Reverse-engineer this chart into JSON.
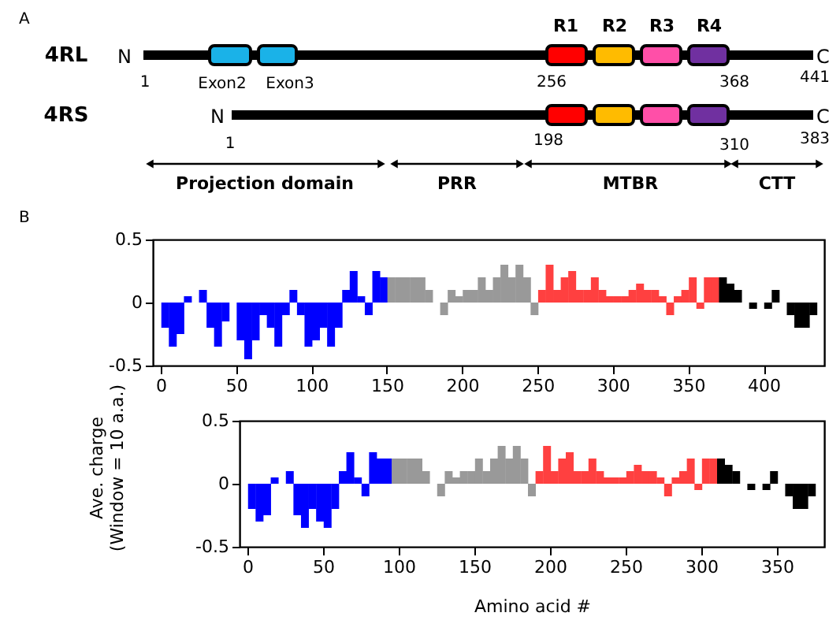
{
  "chart_data": [
    {
      "type": "other",
      "annotations": [
        "A",
        "4RL",
        "N",
        "C",
        "Exon2",
        "Exon3",
        "R1",
        "R2",
        "R3",
        "R4",
        "1",
        "256",
        "368",
        "441",
        "4RS",
        "N",
        "C",
        "1",
        "198",
        "310",
        "383",
        "Projection domain",
        "PRR",
        "MTBR",
        "CTT",
        "B"
      ],
      "colors": [
        "#1ab2e8",
        "#1ab2e8",
        "#ff0000",
        "#ffbb00",
        "#ff4fa8",
        "#7030a0"
      ]
    },
    {
      "type": "bar",
      "xlim": [
        0,
        435
      ],
      "xticks": [
        0,
        50,
        100,
        150,
        200,
        250,
        300,
        350,
        400
      ],
      "ylim": [
        -0.5,
        0.5
      ],
      "yticks": [
        -0.5,
        0,
        0.5
      ],
      "grid": false,
      "legend": false,
      "series": [
        {
          "color": "#0000ff",
          "x": [
            3,
            8,
            13,
            18,
            23,
            28,
            33,
            38,
            43,
            48,
            53,
            58,
            63,
            68,
            73,
            78,
            83,
            88,
            93,
            98,
            103,
            108,
            113,
            118,
            123,
            128,
            133,
            138,
            143,
            148
          ],
          "values": [
            -0.2,
            -0.35,
            -0.25,
            0.05,
            0,
            0.1,
            -0.2,
            -0.35,
            -0.15,
            0,
            -0.3,
            -0.45,
            -0.3,
            -0.1,
            -0.2,
            -0.35,
            -0.1,
            0.1,
            -0.1,
            -0.35,
            -0.3,
            -0.2,
            -0.35,
            -0.2,
            0.1,
            0.25,
            0.05,
            -0.1,
            0.25,
            0.2
          ]
        },
        {
          "color": "#999999",
          "x": [
            153,
            158,
            163,
            168,
            173,
            178,
            183,
            188,
            193,
            198,
            203,
            208,
            213,
            218,
            223,
            228,
            233,
            238,
            243,
            248
          ],
          "values": [
            0.2,
            0.2,
            0.2,
            0.2,
            0.2,
            0.1,
            0,
            -0.1,
            0.1,
            0.05,
            0.1,
            0.1,
            0.2,
            0.1,
            0.2,
            0.3,
            0.2,
            0.3,
            0.2,
            -0.1
          ]
        },
        {
          "color": "#ff4040",
          "x": [
            253,
            258,
            263,
            268,
            273,
            278,
            283,
            288,
            293,
            298,
            303,
            308,
            313,
            318,
            323,
            328,
            333,
            338,
            343,
            348,
            353,
            358,
            363,
            368
          ],
          "values": [
            0.1,
            0.3,
            0.1,
            0.2,
            0.25,
            0.1,
            0.1,
            0.2,
            0.1,
            0.05,
            0.05,
            0.05,
            0.1,
            0.15,
            0.1,
            0.1,
            0.05,
            -0.1,
            0.05,
            0.1,
            0.2,
            -0.05,
            0.2,
            0.2
          ]
        },
        {
          "color": "#000000",
          "x": [
            373,
            378,
            383,
            388,
            393,
            398,
            403,
            408,
            413,
            418,
            423,
            428,
            433
          ],
          "values": [
            0.2,
            0.15,
            0.1,
            0,
            -0.05,
            0,
            -0.05,
            0.1,
            0,
            -0.1,
            -0.2,
            -0.2,
            -0.1
          ]
        }
      ]
    },
    {
      "type": "bar",
      "xlabel": "Amino acid #",
      "ylabel": "Ave. charge\n(Window = 10 a.a.)",
      "xlim": [
        0,
        376
      ],
      "xticks": [
        0,
        50,
        100,
        150,
        200,
        250,
        300,
        350
      ],
      "ylim": [
        -0.5,
        0.5
      ],
      "yticks": [
        -0.5,
        0,
        0.5
      ],
      "grid": false,
      "legend": false,
      "series": [
        {
          "color": "#0000ff",
          "x": [
            3,
            8,
            13,
            18,
            23,
            28,
            33,
            38,
            43,
            48,
            53,
            58,
            63,
            68,
            73,
            78,
            83,
            88,
            93
          ],
          "values": [
            -0.2,
            -0.3,
            -0.25,
            0.05,
            0,
            0.1,
            -0.25,
            -0.35,
            -0.2,
            -0.3,
            -0.35,
            -0.2,
            0.1,
            0.25,
            0.05,
            -0.1,
            0.25,
            0.2,
            0.2
          ]
        },
        {
          "color": "#999999",
          "x": [
            98,
            103,
            108,
            113,
            118,
            123,
            128,
            133,
            138,
            143,
            148,
            153,
            158,
            163,
            168,
            173,
            178,
            183,
            188
          ],
          "values": [
            0.2,
            0.2,
            0.2,
            0.2,
            0.1,
            0,
            -0.1,
            0.1,
            0.05,
            0.1,
            0.1,
            0.2,
            0.1,
            0.2,
            0.3,
            0.2,
            0.3,
            0.2,
            -0.1
          ]
        },
        {
          "color": "#ff4040",
          "x": [
            193,
            198,
            203,
            208,
            213,
            218,
            223,
            228,
            233,
            238,
            243,
            248,
            253,
            258,
            263,
            268,
            273,
            278,
            283,
            288,
            293,
            298,
            303,
            308
          ],
          "values": [
            0.1,
            0.3,
            0.1,
            0.2,
            0.25,
            0.1,
            0.1,
            0.2,
            0.1,
            0.05,
            0.05,
            0.05,
            0.1,
            0.15,
            0.1,
            0.1,
            0.05,
            -0.1,
            0.05,
            0.1,
            0.2,
            -0.05,
            0.2,
            0.2
          ]
        },
        {
          "color": "#000000",
          "x": [
            313,
            318,
            323,
            328,
            333,
            338,
            343,
            348,
            353,
            358,
            363,
            368,
            373
          ],
          "values": [
            0.2,
            0.15,
            0.1,
            0,
            -0.05,
            0,
            -0.05,
            0.1,
            0,
            -0.1,
            -0.2,
            -0.2,
            -0.1
          ]
        }
      ]
    }
  ]
}
